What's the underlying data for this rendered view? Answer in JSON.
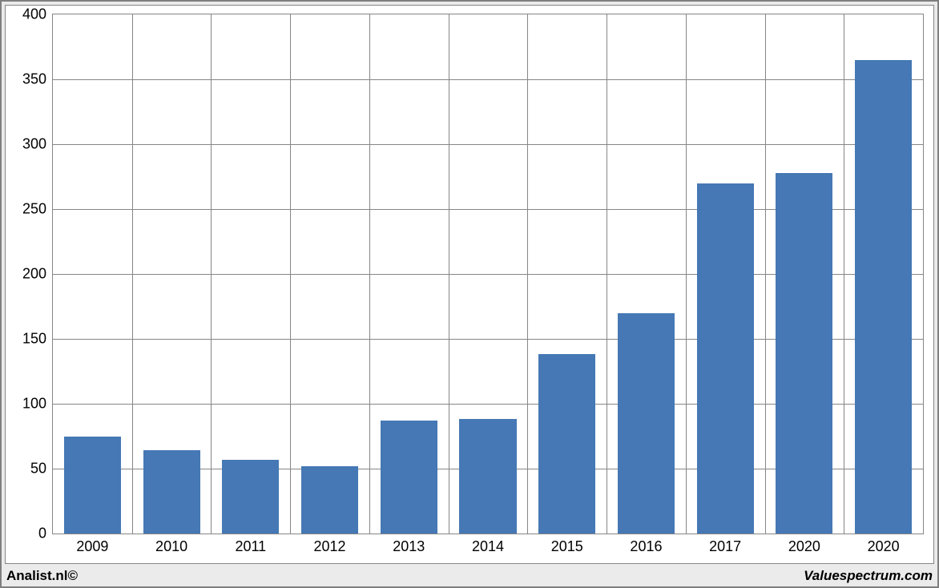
{
  "chart": {
    "type": "bar",
    "categories": [
      "2009",
      "2010",
      "2011",
      "2012",
      "2013",
      "2014",
      "2015",
      "2016",
      "2017",
      "2020",
      "2020"
    ],
    "values": [
      75,
      64,
      57,
      52,
      87,
      88,
      138,
      170,
      270,
      278,
      365
    ],
    "bar_color": "#4578b4",
    "ylim": [
      0,
      400
    ],
    "ytick_step": 50,
    "yticks": [
      "0",
      "50",
      "100",
      "150",
      "200",
      "250",
      "300",
      "350",
      "400"
    ],
    "grid_color": "#868686",
    "background_color": "#ffffff",
    "outer_background": "#ebebeb",
    "outer_border": "#7f7f7f",
    "tick_fontsize": 18,
    "bar_width_ratio": 0.72
  },
  "footer": {
    "left": "Analist.nl©",
    "right": "Valuespectrum.com"
  }
}
